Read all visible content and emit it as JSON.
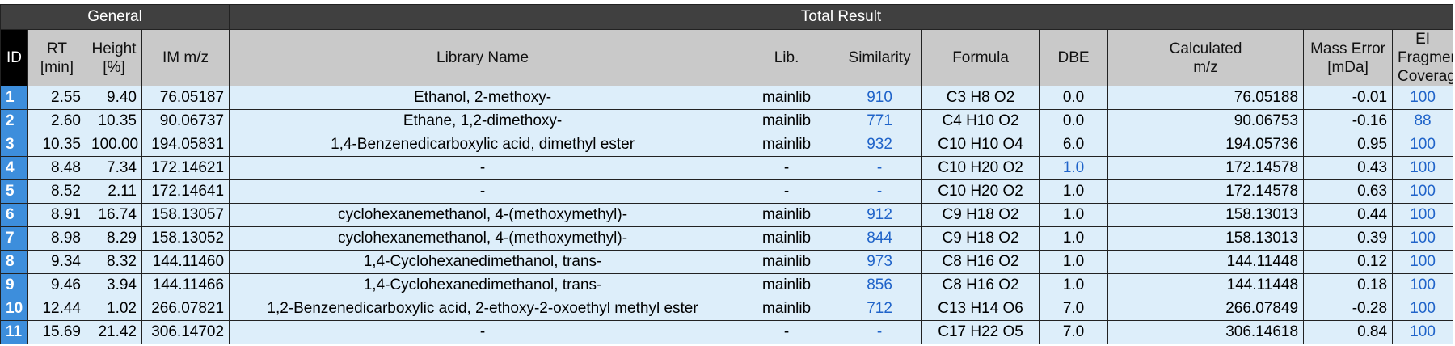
{
  "groups": {
    "general": "General",
    "total": "Total Result"
  },
  "headers": {
    "id": "ID",
    "rt": [
      "RT",
      "[min]"
    ],
    "height": [
      "Height",
      "[%]"
    ],
    "im_mz": "IM m/z",
    "library_name": "Library Name",
    "lib": "Lib.",
    "similarity": "Similarity",
    "formula": "Formula",
    "dbe": "DBE",
    "calc_mz": [
      "Calculated",
      "m/z"
    ],
    "mass_error": [
      "Mass Error",
      "[mDa]"
    ],
    "ei_coverage": [
      "EI Fragment",
      "Coverage"
    ]
  },
  "colors": {
    "group_header": "#404040",
    "column_header": "#c9c9c9",
    "id_cell": "#3d8edc",
    "row_bg": "#ddeefa",
    "link_blue": "#1f63c9"
  },
  "rows": [
    {
      "id": "1",
      "rt": "2.55",
      "height": "9.40",
      "im_mz": "76.05187",
      "name": "Ethanol, 2-methoxy-",
      "lib": "mainlib",
      "similarity": "910",
      "formula": "C3 H8 O2",
      "dbe": "0.0",
      "calc_mz": "76.05188",
      "mass_error": "-0.01",
      "coverage": "100"
    },
    {
      "id": "2",
      "rt": "2.60",
      "height": "10.35",
      "im_mz": "90.06737",
      "name": "Ethane, 1,2-dimethoxy-",
      "lib": "mainlib",
      "similarity": "771",
      "formula": "C4 H10 O2",
      "dbe": "0.0",
      "calc_mz": "90.06753",
      "mass_error": "-0.16",
      "coverage": "88"
    },
    {
      "id": "3",
      "rt": "10.35",
      "height": "100.00",
      "im_mz": "194.05831",
      "name": "1,4-Benzenedicarboxylic acid, dimethyl ester",
      "lib": "mainlib",
      "similarity": "932",
      "formula": "C10 H10 O4",
      "dbe": "6.0",
      "calc_mz": "194.05736",
      "mass_error": "0.95",
      "coverage": "100"
    },
    {
      "id": "4",
      "rt": "8.48",
      "height": "7.34",
      "im_mz": "172.14621",
      "name": "-",
      "lib": "-",
      "similarity": "-",
      "formula": "C10 H20 O2",
      "dbe": "1.0",
      "calc_mz": "172.14578",
      "mass_error": "0.43",
      "coverage": "100"
    },
    {
      "id": "5",
      "rt": "8.52",
      "height": "2.11",
      "im_mz": "172.14641",
      "name": "-",
      "lib": "-",
      "similarity": "-",
      "formula": "C10 H20 O2",
      "dbe": "1.0",
      "calc_mz": "172.14578",
      "mass_error": "0.63",
      "coverage": "100"
    },
    {
      "id": "6",
      "rt": "8.91",
      "height": "16.74",
      "im_mz": "158.13057",
      "name": "cyclohexanemethanol, 4-(methoxymethyl)-",
      "lib": "mainlib",
      "similarity": "912",
      "formula": "C9 H18 O2",
      "dbe": "1.0",
      "calc_mz": "158.13013",
      "mass_error": "0.44",
      "coverage": "100"
    },
    {
      "id": "7",
      "rt": "8.98",
      "height": "8.29",
      "im_mz": "158.13052",
      "name": "cyclohexanemethanol, 4-(methoxymethyl)-",
      "lib": "mainlib",
      "similarity": "844",
      "formula": "C9 H18 O2",
      "dbe": "1.0",
      "calc_mz": "158.13013",
      "mass_error": "0.39",
      "coverage": "100"
    },
    {
      "id": "8",
      "rt": "9.34",
      "height": "8.32",
      "im_mz": "144.11460",
      "name": "1,4-Cyclohexanedimethanol, trans-",
      "lib": "mainlib",
      "similarity": "973",
      "formula": "C8 H16 O2",
      "dbe": "1.0",
      "calc_mz": "144.11448",
      "mass_error": "0.12",
      "coverage": "100"
    },
    {
      "id": "9",
      "rt": "9.46",
      "height": "3.94",
      "im_mz": "144.11466",
      "name": "1,4-Cyclohexanedimethanol, trans-",
      "lib": "mainlib",
      "similarity": "856",
      "formula": "C8 H16 O2",
      "dbe": "1.0",
      "calc_mz": "144.11448",
      "mass_error": "0.18",
      "coverage": "100"
    },
    {
      "id": "10",
      "rt": "12.44",
      "height": "1.02",
      "im_mz": "266.07821",
      "name": "1,2-Benzenedicarboxylic acid, 2-ethoxy-2-oxoethyl methyl ester",
      "lib": "mainlib",
      "similarity": "712",
      "formula": "C13 H14 O6",
      "dbe": "7.0",
      "calc_mz": "266.07849",
      "mass_error": "-0.28",
      "coverage": "100"
    },
    {
      "id": "11",
      "rt": "15.69",
      "height": "21.42",
      "im_mz": "306.14702",
      "name": "-",
      "lib": "-",
      "similarity": "-",
      "formula": "C17 H22 O5",
      "dbe": "7.0",
      "calc_mz": "306.14618",
      "mass_error": "0.84",
      "coverage": "100"
    }
  ]
}
